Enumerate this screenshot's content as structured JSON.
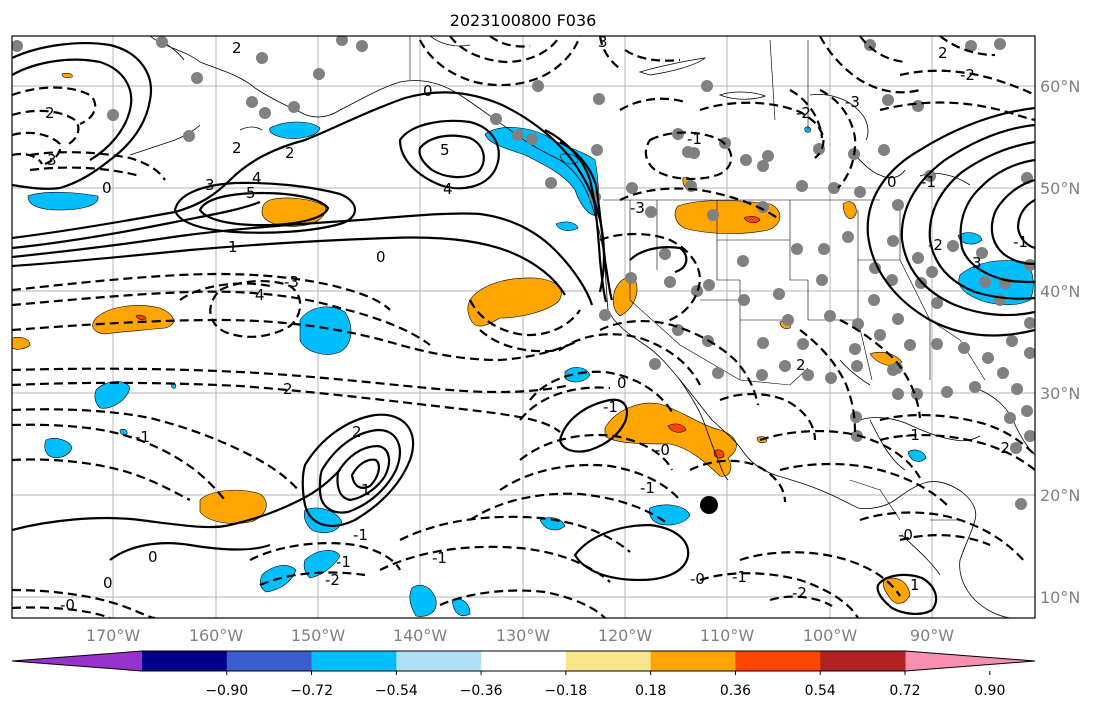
{
  "title": "2023100800 F036",
  "map": {
    "lon_ticks": [
      "170°W",
      "160°W",
      "150°W",
      "140°W",
      "130°W",
      "120°W",
      "110°W",
      "100°W",
      "90°W"
    ],
    "lat_ticks": [
      "60°N",
      "50°N",
      "40°N",
      "30°N",
      "20°N",
      "10°N"
    ],
    "grid": true
  },
  "colorbar": {
    "labels": [
      "−0.90",
      "−0.72",
      "−0.54",
      "−0.36",
      "−0.18",
      "0.18",
      "0.36",
      "0.54",
      "0.72",
      "0.90"
    ],
    "colors": [
      "#9932cc",
      "#00008b",
      "#3a5fcd",
      "#00bfff",
      "#b0e0f5",
      "#ffffff",
      "#f8e58c",
      "#ffa500",
      "#ff4500",
      "#b22222",
      "#f88fb0"
    ]
  },
  "contour_labels": [
    {
      "id": "l1",
      "text": "2"
    },
    {
      "id": "l2",
      "text": "3"
    },
    {
      "id": "l3",
      "text": "0"
    },
    {
      "id": "l4",
      "text": "2"
    },
    {
      "id": "l5",
      "text": "2"
    },
    {
      "id": "l6",
      "text": "3"
    },
    {
      "id": "l7",
      "text": "4"
    },
    {
      "id": "l8",
      "text": "5"
    },
    {
      "id": "l9",
      "text": "5"
    },
    {
      "id": "l10",
      "text": "4"
    },
    {
      "id": "l11",
      "text": "0"
    },
    {
      "id": "l12",
      "text": "1"
    },
    {
      "id": "l13",
      "text": "3"
    },
    {
      "id": "l14",
      "text": "4"
    },
    {
      "id": "l15",
      "text": "2"
    },
    {
      "id": "l16",
      "text": "-1"
    },
    {
      "id": "l17",
      "text": "2"
    },
    {
      "id": "l18",
      "text": "2"
    },
    {
      "id": "l19",
      "text": "1"
    },
    {
      "id": "l20",
      "text": "0"
    },
    {
      "id": "l21",
      "text": "0"
    },
    {
      "id": "l22",
      "text": "-1"
    },
    {
      "id": "l23",
      "text": "-2"
    },
    {
      "id": "l24",
      "text": "-1"
    },
    {
      "id": "l25",
      "text": "0"
    },
    {
      "id": "l26",
      "text": "-1"
    },
    {
      "id": "l27",
      "text": "0"
    },
    {
      "id": "l28",
      "text": "-1"
    },
    {
      "id": "l29",
      "text": "-0"
    },
    {
      "id": "l30",
      "text": "-0"
    },
    {
      "id": "l31",
      "text": "-1"
    },
    {
      "id": "l32",
      "text": "-2"
    },
    {
      "id": "l33",
      "text": "1"
    },
    {
      "id": "l34",
      "text": "3"
    },
    {
      "id": "l35",
      "text": "2"
    },
    {
      "id": "l36",
      "text": "0"
    },
    {
      "id": "l37",
      "text": "-1"
    },
    {
      "id": "l38",
      "text": "-2"
    },
    {
      "id": "l39",
      "text": "-0"
    },
    {
      "id": "l40",
      "text": "-3"
    },
    {
      "id": "l41",
      "text": "-2"
    },
    {
      "id": "l42",
      "text": "-1"
    },
    {
      "id": "l43",
      "text": "-1"
    },
    {
      "id": "l44",
      "text": "-1"
    },
    {
      "id": "l45",
      "text": "-2"
    },
    {
      "id": "l46",
      "text": "-3"
    },
    {
      "id": "l47",
      "text": "-3"
    },
    {
      "id": "l48",
      "text": "2"
    },
    {
      "id": "l49",
      "text": "-1"
    },
    {
      "id": "l50",
      "text": "-0"
    },
    {
      "id": "l51",
      "text": "-2"
    }
  ]
}
